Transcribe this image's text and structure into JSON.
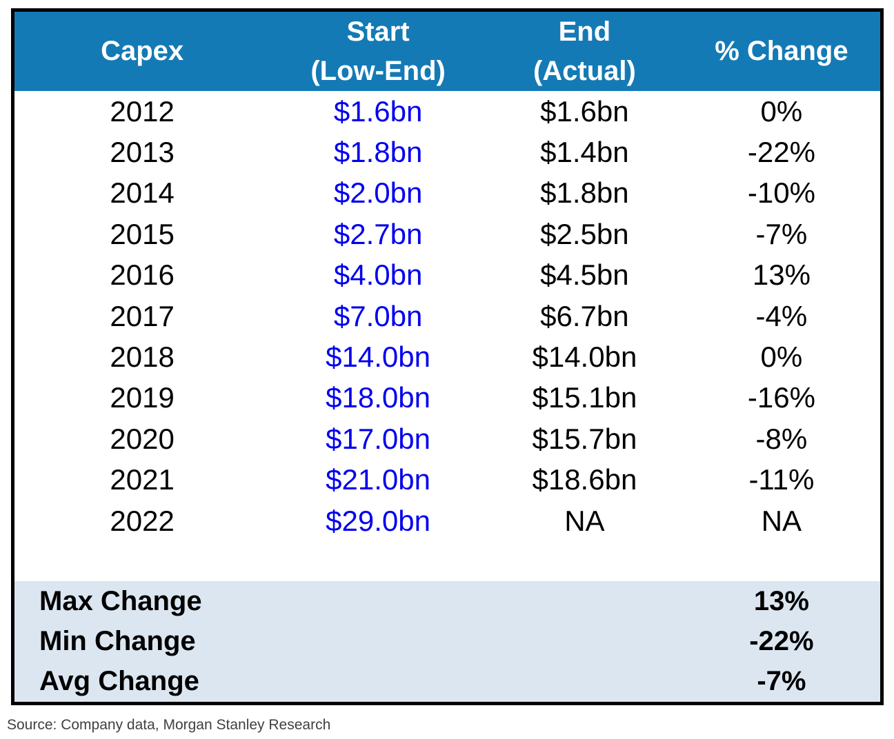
{
  "header": {
    "col_capex": "Capex",
    "col_start_line1": "Start",
    "col_start_line2": "(Low-End)",
    "col_end_line1": "End",
    "col_end_line2": "(Actual)",
    "col_change": "% Change"
  },
  "rows": [
    {
      "year": "2012",
      "start": "$1.6bn",
      "end": "$1.6bn",
      "change": "0%"
    },
    {
      "year": "2013",
      "start": "$1.8bn",
      "end": "$1.4bn",
      "change": "-22%"
    },
    {
      "year": "2014",
      "start": "$2.0bn",
      "end": "$1.8bn",
      "change": "-10%"
    },
    {
      "year": "2015",
      "start": "$2.7bn",
      "end": "$2.5bn",
      "change": "-7%"
    },
    {
      "year": "2016",
      "start": "$4.0bn",
      "end": "$4.5bn",
      "change": "13%"
    },
    {
      "year": "2017",
      "start": "$7.0bn",
      "end": "$6.7bn",
      "change": "-4%"
    },
    {
      "year": "2018",
      "start": "$14.0bn",
      "end": "$14.0bn",
      "change": "0%"
    },
    {
      "year": "2019",
      "start": "$18.0bn",
      "end": "$15.1bn",
      "change": "-16%"
    },
    {
      "year": "2020",
      "start": "$17.0bn",
      "end": "$15.7bn",
      "change": "-8%"
    },
    {
      "year": "2021",
      "start": "$21.0bn",
      "end": "$18.6bn",
      "change": "-11%"
    },
    {
      "year": "2022",
      "start": "$29.0bn",
      "end": "NA",
      "change": "NA"
    }
  ],
  "summary": [
    {
      "label": "Max Change",
      "value": "13%"
    },
    {
      "label": "Min Change",
      "value": "-22%"
    },
    {
      "label": "Avg Change",
      "value": "-7%"
    }
  ],
  "source": "Source: Company data, Morgan Stanley Research",
  "colors": {
    "header_bg": "#147AB5",
    "header_text": "#FFFFFF",
    "start_value_text": "#0000EE",
    "summary_bg": "#DCE6F1",
    "table_border": "#000000",
    "source_text": "#404040"
  }
}
